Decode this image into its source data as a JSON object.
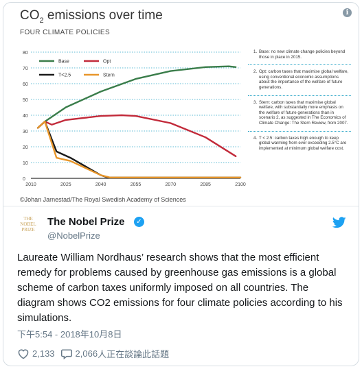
{
  "chart_image": {
    "title_main": "CO",
    "title_sub": "2",
    "title_rest": " emissions over time",
    "subtitle": "FOUR CLIMATE POLICIES",
    "credit": "©Johan Jarnestad/The Royal Swedish Academy of Sciences",
    "info_icon_glyph": "i"
  },
  "chart_data": {
    "type": "line",
    "xlim": [
      2010,
      2100
    ],
    "ylim": [
      0,
      80
    ],
    "x_ticks": [
      "2010",
      "2025",
      "2040",
      "2055",
      "2070",
      "2085",
      "2100"
    ],
    "y_ticks": [
      "0",
      "10",
      "20",
      "30",
      "40",
      "50",
      "60",
      "70",
      "80"
    ],
    "legend_placement": "top-left",
    "grid": true,
    "series": [
      {
        "name": "Base",
        "color": "#3a7d4a",
        "x": [
          2013,
          2016,
          2025,
          2040,
          2055,
          2070,
          2085,
          2095,
          2098
        ],
        "y": [
          32,
          36,
          45,
          55,
          63,
          68,
          70.5,
          71,
          70.5
        ]
      },
      {
        "name": "Opt",
        "color": "#c22a3a",
        "x": [
          2013,
          2016,
          2019,
          2025,
          2040,
          2049,
          2055,
          2070,
          2085,
          2098
        ],
        "y": [
          32,
          36,
          34,
          37,
          39.5,
          40,
          39.5,
          35,
          26,
          14
        ]
      },
      {
        "name": "T<2.5",
        "color": "#1a1a1a",
        "x": [
          2013,
          2016,
          2021,
          2027,
          2040,
          2043,
          2055,
          2070,
          2085,
          2100
        ],
        "y": [
          32,
          36,
          17,
          13,
          2,
          0.5,
          0.5,
          0.5,
          0.5,
          0.5
        ]
      },
      {
        "name": "Stern",
        "color": "#e8962a",
        "x": [
          2013,
          2016,
          2021,
          2027,
          2040,
          2044,
          2055,
          2070,
          2085,
          2100
        ],
        "y": [
          32,
          36,
          13,
          11,
          2,
          0.5,
          0.5,
          0.5,
          0.5,
          0.5
        ]
      }
    ]
  },
  "notes": [
    {
      "num": "1.",
      "text": "Base: no new climate change policies beyond those in place in 2015."
    },
    {
      "num": "2.",
      "text": "Opt: carbon taxes that maximise global welfare, using conventional economic assumptions about the importance of the welfare of future generations."
    },
    {
      "num": "3.",
      "text": "Stern: carbon taxes that maximise global welfare, with substantially more emphasis on the welfare of future generations than in scenario 2, as suggested in The Economics of Climate Change: The Stern Review, from 2007."
    },
    {
      "num": "4.",
      "text": "T < 2.5: carbon taxes high enough to keep global warming from ever exceeding 2.5°C are implemented at minimum global welfare cost."
    }
  ],
  "tweet": {
    "logo_lines": [
      "THE",
      "NOBEL",
      "PRIZE"
    ],
    "name": "The Nobel Prize",
    "verified_glyph": "✓",
    "handle": "@NobelPrize",
    "text": "Laureate William Nordhaus’ research shows that the most efficient remedy for problems caused by greenhouse gas emissions is a global scheme of carbon taxes uniformly imposed on all countries. The diagram shows CO2 emissions for four climate policies according to his simulations.",
    "timestamp": "下午5:54 - 2018年10月8日",
    "likes": "2,133",
    "replies": "2,066",
    "replies_suffix": "人正在談論此話題",
    "brand_color": "#1da1f2"
  }
}
